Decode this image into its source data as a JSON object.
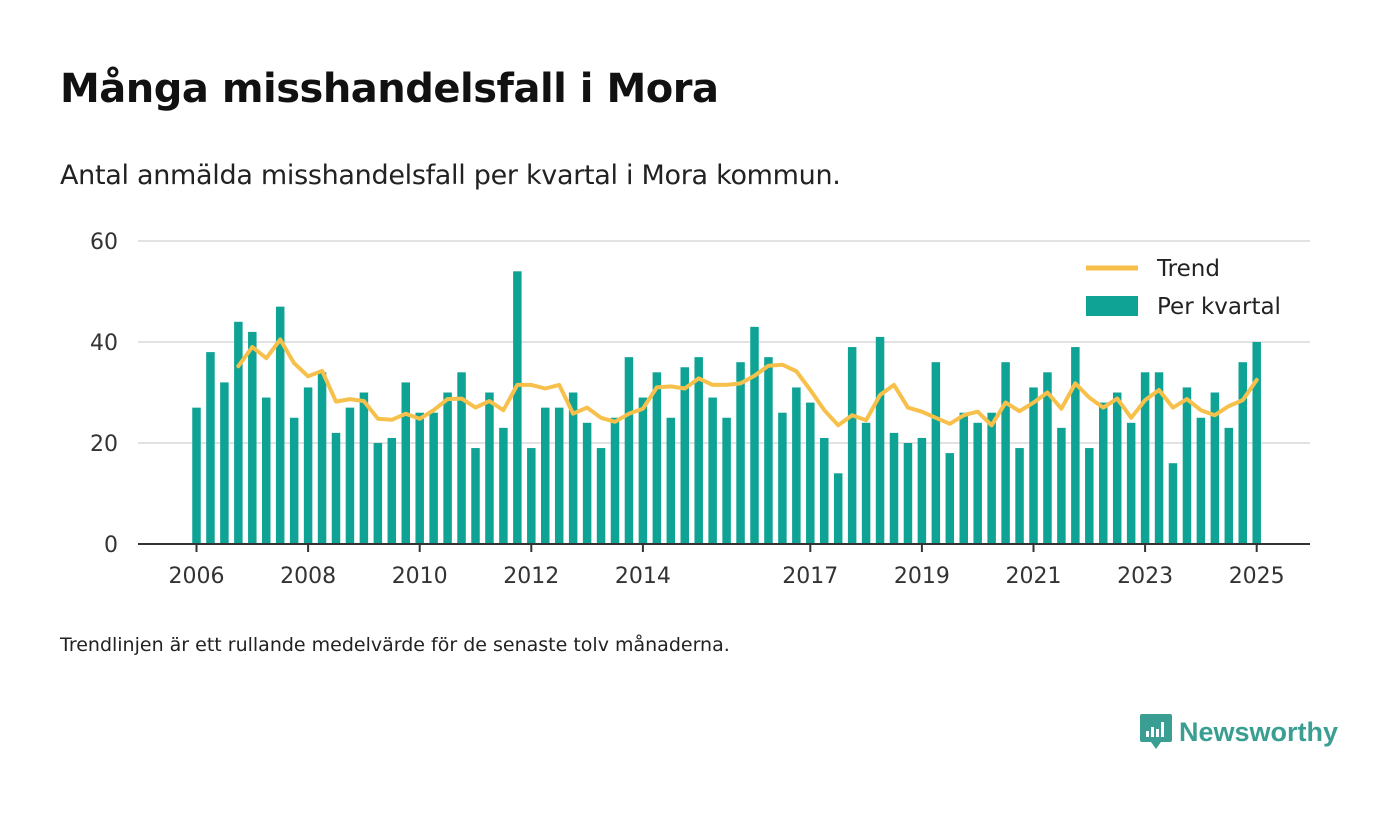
{
  "title": "Många misshandelsfall i Mora",
  "subtitle": "Antal anmälda misshandelsfall per kvartal i Mora kommun.",
  "note": "Trendlinjen är ett rullande medelvärde för de senaste tolv månaderna.",
  "brand": "Newsworthy",
  "colors": {
    "bars": "#0fa396",
    "trend": "#f7c04b",
    "grid": "#d9d9d9",
    "axis": "#333333",
    "brand": "#3a9e92"
  },
  "chart_data": {
    "type": "bar",
    "ylim": [
      0,
      60
    ],
    "y_ticks": [
      "0",
      "20",
      "40",
      "60"
    ],
    "x_ticks": [
      "2006",
      "2008",
      "2010",
      "2012",
      "2014",
      "2017",
      "2019",
      "2021",
      "2023",
      "2025"
    ],
    "grid": true,
    "legend_position": "top-right",
    "categories": [
      "2006 Q1",
      "2006 Q2",
      "2006 Q3",
      "2006 Q4",
      "2007 Q1",
      "2007 Q2",
      "2007 Q3",
      "2007 Q4",
      "2008 Q1",
      "2008 Q2",
      "2008 Q3",
      "2008 Q4",
      "2009 Q1",
      "2009 Q2",
      "2009 Q3",
      "2009 Q4",
      "2010 Q1",
      "2010 Q2",
      "2010 Q3",
      "2010 Q4",
      "2011 Q1",
      "2011 Q2",
      "2011 Q3",
      "2011 Q4",
      "2012 Q1",
      "2012 Q2",
      "2012 Q3",
      "2012 Q4",
      "2013 Q1",
      "2013 Q2",
      "2013 Q3",
      "2013 Q4",
      "2014 Q1",
      "2014 Q2",
      "2014 Q3",
      "2014 Q4",
      "2015 Q1",
      "2015 Q2",
      "2015 Q3",
      "2015 Q4",
      "2016 Q1",
      "2016 Q2",
      "2016 Q3",
      "2016 Q4",
      "2017 Q1",
      "2017 Q2",
      "2017 Q3",
      "2017 Q4",
      "2018 Q1",
      "2018 Q2",
      "2018 Q3",
      "2018 Q4",
      "2019 Q1",
      "2019 Q2",
      "2019 Q3",
      "2019 Q4",
      "2020 Q1",
      "2020 Q2",
      "2020 Q3",
      "2020 Q4",
      "2021 Q1",
      "2021 Q2",
      "2021 Q3",
      "2021 Q4",
      "2022 Q1",
      "2022 Q2",
      "2022 Q3",
      "2022 Q4",
      "2023 Q1",
      "2023 Q2",
      "2023 Q3",
      "2023 Q4",
      "2024 Q1",
      "2024 Q2",
      "2024 Q3",
      "2024 Q4",
      "2025 Q1"
    ],
    "series": [
      {
        "name": "Per kvartal",
        "type": "bar",
        "values": [
          27,
          38,
          32,
          44,
          42,
          29,
          47,
          25,
          31,
          34,
          22,
          27,
          30,
          20,
          21,
          32,
          26,
          26,
          30,
          34,
          19,
          30,
          23,
          54,
          19,
          27,
          27,
          30,
          24,
          19,
          25,
          37,
          29,
          34,
          25,
          35,
          37,
          29,
          25,
          36,
          43,
          37,
          26,
          31,
          28,
          21,
          14,
          39,
          24,
          41,
          22,
          20,
          21,
          36,
          18,
          26,
          24,
          26,
          36,
          19,
          31,
          34,
          23,
          39,
          19,
          28,
          30,
          24,
          34,
          34,
          16,
          31,
          25,
          30,
          23,
          36,
          40
        ]
      },
      {
        "name": "Trend",
        "type": "line",
        "values": [
          null,
          null,
          null,
          35.2,
          39.0,
          36.8,
          40.5,
          35.8,
          33.2,
          34.3,
          28.2,
          28.7,
          28.3,
          24.8,
          24.6,
          25.8,
          24.8,
          26.5,
          28.7,
          28.8,
          27.0,
          28.3,
          26.5,
          31.5,
          31.5,
          30.8,
          31.5,
          25.8,
          27.0,
          25.0,
          24.2,
          25.8,
          26.8,
          31.0,
          31.2,
          30.8,
          32.8,
          31.5,
          31.5,
          31.8,
          33.3,
          35.3,
          35.5,
          34.2,
          30.5,
          26.5,
          23.5,
          25.5,
          24.5,
          29.5,
          31.5,
          27.0,
          26.2,
          25.0,
          23.8,
          25.5,
          26.2,
          23.5,
          28.0,
          26.3,
          28.0,
          30.0,
          26.8,
          31.8,
          29.0,
          27.0,
          28.8,
          25.0,
          28.5,
          30.5,
          27.0,
          28.7,
          26.5,
          25.5,
          27.3,
          28.5,
          32.5
        ]
      }
    ]
  }
}
